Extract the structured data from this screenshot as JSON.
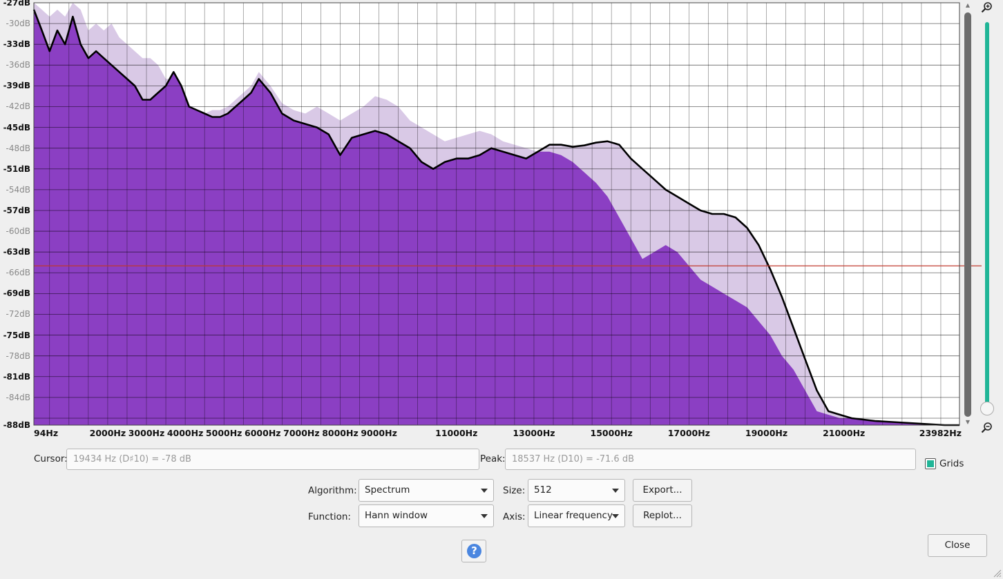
{
  "chart_data": {
    "type": "area",
    "title": "",
    "xlabel": "",
    "ylabel": "",
    "x_ticks": [
      "94Hz",
      "2000Hz",
      "3000Hz",
      "4000Hz",
      "5000Hz",
      "6000Hz",
      "7000Hz",
      "8000Hz",
      "9000Hz",
      "11000Hz",
      "13000Hz",
      "15000Hz",
      "17000Hz",
      "19000Hz",
      "21000Hz",
      "23982Hz"
    ],
    "x_tick_values": [
      94,
      2000,
      3000,
      4000,
      5000,
      6000,
      7000,
      8000,
      9000,
      11000,
      13000,
      15000,
      17000,
      19000,
      21000,
      23982
    ],
    "y_ticks": [
      "-27dB",
      "-30dB",
      "-33dB",
      "-36dB",
      "-39dB",
      "-42dB",
      "-45dB",
      "-48dB",
      "-51dB",
      "-54dB",
      "-57dB",
      "-60dB",
      "-63dB",
      "-66dB",
      "-69dB",
      "-72dB",
      "-75dB",
      "-78dB",
      "-81dB",
      "-84dB",
      "-88dB"
    ],
    "xlim": [
      94,
      23982
    ],
    "ylim": [
      -88,
      -27
    ],
    "grid": true,
    "cursor_db": -65,
    "series": [
      {
        "color": "#8b3fc3",
        "x": [
          94,
          300,
          500,
          700,
          900,
          1100,
          1300,
          1500,
          1700,
          1900,
          2100,
          2300,
          2500,
          2700,
          2900,
          3100,
          3300,
          3500,
          3700,
          3900,
          4100,
          4300,
          4500,
          4700,
          4900,
          5100,
          5300,
          5500,
          5700,
          5900,
          6200,
          6500,
          6800,
          7100,
          7400,
          7700,
          8000,
          8300,
          8600,
          8900,
          9200,
          9500,
          9800,
          10100,
          10400,
          10700,
          11000,
          11300,
          11600,
          11900,
          12200,
          12500,
          12800,
          13100,
          13400,
          13700,
          14000,
          14300,
          14600,
          14900,
          15200,
          15500,
          15800,
          16100,
          16400,
          16700,
          17000,
          17300,
          17600,
          17900,
          18200,
          18500,
          18800,
          19100,
          19400,
          19700,
          20000,
          20300,
          20600,
          20900,
          21200,
          21500,
          21800,
          22100,
          22400,
          22700,
          23000,
          23300,
          23600,
          23982
        ],
        "values": [
          -28,
          -31,
          -34,
          -31,
          -33,
          -29,
          -33,
          -35,
          -34,
          -35,
          -36,
          -37,
          -38,
          -39,
          -41,
          -41,
          -40,
          -39,
          -37,
          -39,
          -42,
          -42.5,
          -43,
          -43.5,
          -43.5,
          -43,
          -42,
          -41,
          -40,
          -38,
          -40,
          -43,
          -44,
          -44.5,
          -45,
          -46,
          -49,
          -46.5,
          -46,
          -45.5,
          -46,
          -47,
          -48,
          -50,
          -51,
          -50,
          -49.5,
          -49.5,
          -49,
          -48,
          -48.5,
          -49,
          -49.5,
          -48.5,
          -48.5,
          -49,
          -50,
          -51.5,
          -53,
          -55,
          -58,
          -61,
          -64,
          -63,
          -62,
          -63,
          -65,
          -67,
          -68,
          -69,
          -70,
          -71,
          -73,
          -75,
          -78,
          -80,
          -83,
          -86,
          -86.5,
          -87,
          -87,
          -87.2,
          -87.4,
          -87.5,
          -87.6,
          -87.7,
          -87.8,
          -87.9,
          -88,
          -88
        ]
      },
      {
        "color": "#000000",
        "x": [
          94,
          300,
          500,
          700,
          900,
          1100,
          1300,
          1500,
          1700,
          1900,
          2100,
          2300,
          2500,
          2700,
          2900,
          3100,
          3300,
          3500,
          3700,
          3900,
          4100,
          4300,
          4500,
          4700,
          4900,
          5100,
          5300,
          5500,
          5700,
          5900,
          6200,
          6500,
          6800,
          7100,
          7400,
          7700,
          8000,
          8300,
          8600,
          8900,
          9200,
          9500,
          9800,
          10100,
          10400,
          10700,
          11000,
          11300,
          11600,
          11900,
          12200,
          12500,
          12800,
          13100,
          13400,
          13700,
          14000,
          14300,
          14600,
          14900,
          15200,
          15500,
          15800,
          16100,
          16400,
          16700,
          17000,
          17300,
          17600,
          17900,
          18200,
          18500,
          18800,
          19100,
          19400,
          19700,
          20000,
          20300,
          20600,
          20900,
          21200,
          21500,
          21800,
          22100,
          22400,
          22700,
          23000,
          23300,
          23600,
          23982
        ],
        "values": [
          -28,
          -31,
          -34,
          -31,
          -33,
          -29,
          -33,
          -35,
          -34,
          -35,
          -36,
          -37,
          -38,
          -39,
          -41,
          -41,
          -40,
          -39,
          -37,
          -39,
          -42,
          -42.5,
          -43,
          -43.5,
          -43.5,
          -43,
          -42,
          -41,
          -40,
          -38,
          -40,
          -43,
          -44,
          -44.5,
          -45,
          -46,
          -49,
          -46.5,
          -46,
          -45.5,
          -46,
          -47,
          -48,
          -50,
          -51,
          -50,
          -49.5,
          -49.5,
          -49,
          -48,
          -48.5,
          -49,
          -49.5,
          -48.5,
          -47.5,
          -47.5,
          -47.8,
          -47.6,
          -47.2,
          -47,
          -47.5,
          -49.5,
          -51,
          -52.5,
          -54,
          -55,
          -56,
          -57,
          -57.5,
          -57.5,
          -58,
          -59.5,
          -62,
          -65.5,
          -69.5,
          -74,
          -78.5,
          -83,
          -86,
          -86.5,
          -87,
          -87.2,
          -87.4,
          -87.5,
          -87.6,
          -87.7,
          -87.8,
          -87.9,
          -88,
          -88
        ]
      },
      {
        "color": "#d9c9e6",
        "x": [
          94,
          300,
          500,
          700,
          900,
          1100,
          1300,
          1500,
          1700,
          1900,
          2100,
          2300,
          2500,
          2700,
          2900,
          3100,
          3300,
          3500,
          3700,
          3900,
          4100,
          4300,
          4500,
          4700,
          4900,
          5100,
          5300,
          5500,
          5700,
          5900,
          6200,
          6500,
          6800,
          7100,
          7400,
          7700,
          8000,
          8300,
          8600,
          8900,
          9200,
          9500,
          9800,
          10100,
          10400,
          10700,
          11000,
          11300,
          11600,
          11900,
          12200,
          12500,
          12800,
          13100,
          13400,
          13700,
          14000,
          14300,
          14600,
          14900,
          15200,
          15500,
          15800,
          16100,
          16400,
          16700,
          17000,
          17300,
          17600,
          17900,
          18200,
          18500,
          18800,
          19100,
          19400,
          19700,
          20000,
          20300,
          20600,
          20900,
          21200,
          21500,
          21800,
          22100,
          22400,
          22700,
          23000,
          23300,
          23600,
          23982
        ],
        "values": [
          -27,
          -28,
          -29,
          -28,
          -29,
          -27,
          -28,
          -31,
          -30,
          -31,
          -30,
          -32,
          -33,
          -34,
          -35,
          -35,
          -36,
          -38,
          -38,
          -40,
          -42,
          -43,
          -43,
          -42.5,
          -42.5,
          -42,
          -41,
          -40,
          -39,
          -37,
          -39,
          -41.5,
          -42.5,
          -43,
          -42,
          -43,
          -44,
          -43,
          -42,
          -40.5,
          -41,
          -42,
          -44,
          -45,
          -46,
          -47,
          -46.5,
          -46,
          -45.5,
          -46,
          -47,
          -47.5,
          -48,
          -48.5,
          -47.5,
          -47.5,
          -47.8,
          -47.6,
          -47.2,
          -47,
          -47.5,
          -49.5,
          -51,
          -52.5,
          -54,
          -55,
          -56,
          -57,
          -57.5,
          -57.5,
          -58,
          -59.5,
          -62,
          -65.5,
          -69.5,
          -74,
          -78.5,
          -83,
          -86,
          -86.5,
          -87,
          -87.2,
          -87.4,
          -87.5,
          -87.6,
          -87.7,
          -87.8,
          -87.9,
          -88,
          -88
        ]
      }
    ]
  },
  "readouts": {
    "cursor_label": "Cursor:",
    "cursor_value": "19434 Hz (D♯10) = -78 dB",
    "peak_label": "Peak:",
    "peak_value": "18537 Hz (D10) = -71.6 dB",
    "grids_label": "Grids",
    "grids_checked": true
  },
  "controls": {
    "algorithm_label": "Algorithm:",
    "algorithm_value": "Spectrum",
    "size_label": "Size:",
    "size_value": "512",
    "function_label": "Function:",
    "function_value": "Hann window",
    "axis_label": "Axis:",
    "axis_value": "Linear frequency",
    "export_label": "Export...",
    "replot_label": "Replot...",
    "help_glyph": "?",
    "close_label": "Close"
  },
  "icons": {
    "zoom_in": "zoom-in-icon",
    "zoom_out": "zoom-out-icon",
    "help": "help-icon",
    "resize_grip": "resize-grip-icon"
  },
  "colors": {
    "accent": "#20b597",
    "spectrum_fill": "#8b3fc3",
    "peak_fill": "#d9c9e6",
    "cursor_line": "#c0392b"
  }
}
